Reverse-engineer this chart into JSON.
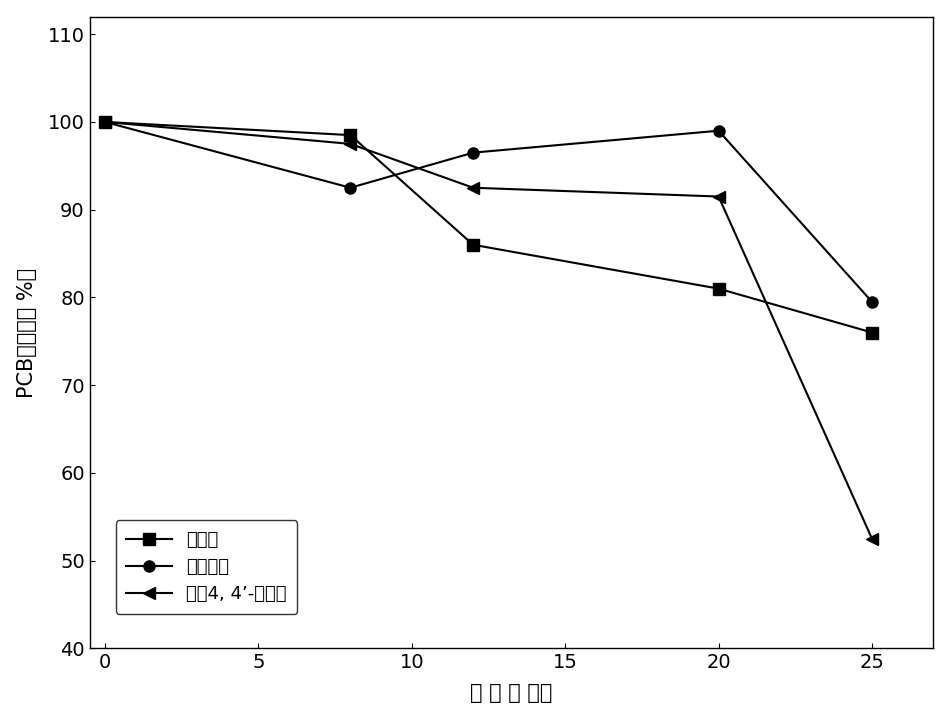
{
  "series": [
    {
      "name": "原样品",
      "x": [
        0,
        8,
        12,
        20,
        25
      ],
      "y": [
        100,
        98.5,
        86,
        81,
        76
      ],
      "marker": "s",
      "color": "black"
    },
    {
      "name": "灭菌控制",
      "x": [
        0,
        8,
        12,
        20,
        25
      ],
      "y": [
        100,
        92.5,
        96.5,
        99,
        79.5
      ],
      "marker": "o",
      "color": "black"
    },
    {
      "name": "加入4, 4’-二渴苯",
      "x": [
        0,
        8,
        12,
        20,
        25
      ],
      "y": [
        100,
        97.5,
        92.5,
        91.5,
        52.5
      ],
      "marker": "<",
      "color": "black"
    }
  ],
  "xlabel": "时 间 （ 月）",
  "ylabel": "PCB剰余率（ %）",
  "xlim": [
    -0.5,
    27
  ],
  "ylim": [
    40,
    112
  ],
  "xticks": [
    0,
    5,
    10,
    15,
    20,
    25
  ],
  "yticks": [
    40,
    50,
    60,
    70,
    80,
    90,
    100,
    110
  ],
  "linewidth": 1.5,
  "markersize": 8,
  "background_color": "white",
  "tick_fontsize": 14,
  "label_fontsize": 15,
  "legend_fontsize": 13
}
